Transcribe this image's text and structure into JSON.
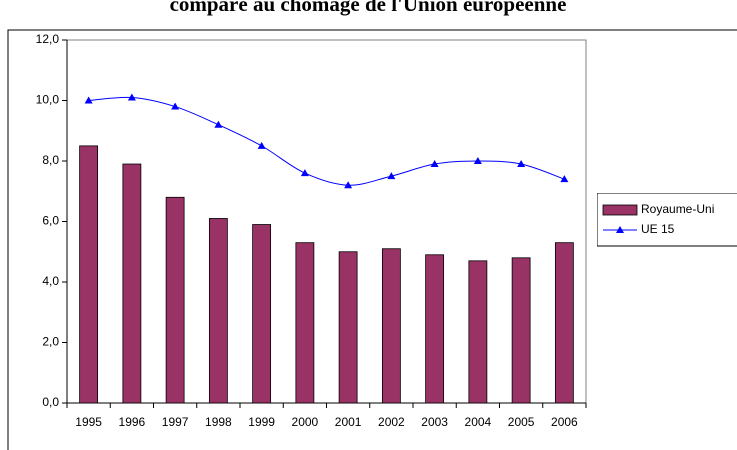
{
  "chart_data": {
    "type": "bar-line",
    "title": "comparé au chômage de l'Union européenne",
    "categories": [
      "1995",
      "1996",
      "1997",
      "1998",
      "1999",
      "2000",
      "2001",
      "2002",
      "2003",
      "2004",
      "2005",
      "2006"
    ],
    "series": [
      {
        "name": "Royaume-Uni",
        "type": "bar",
        "color": "#993366",
        "values": [
          8.5,
          7.9,
          6.8,
          6.1,
          5.9,
          5.3,
          5.0,
          5.1,
          4.9,
          4.7,
          4.8,
          5.3
        ]
      },
      {
        "name": "UE 15",
        "type": "line",
        "color": "#0000ff",
        "values": [
          10.0,
          10.1,
          9.8,
          9.2,
          8.5,
          7.6,
          7.2,
          7.5,
          7.9,
          8.0,
          7.9,
          7.4
        ]
      }
    ],
    "ylim": [
      0,
      12
    ],
    "yticks": [
      {
        "value": 0,
        "label": "0,0"
      },
      {
        "value": 2,
        "label": "2,0"
      },
      {
        "value": 4,
        "label": "4,0"
      },
      {
        "value": 6,
        "label": "6,0"
      },
      {
        "value": 8,
        "label": "8,0"
      },
      {
        "value": 10,
        "label": "10,0"
      },
      {
        "value": 12,
        "label": "12,0"
      }
    ],
    "legend": "right"
  }
}
